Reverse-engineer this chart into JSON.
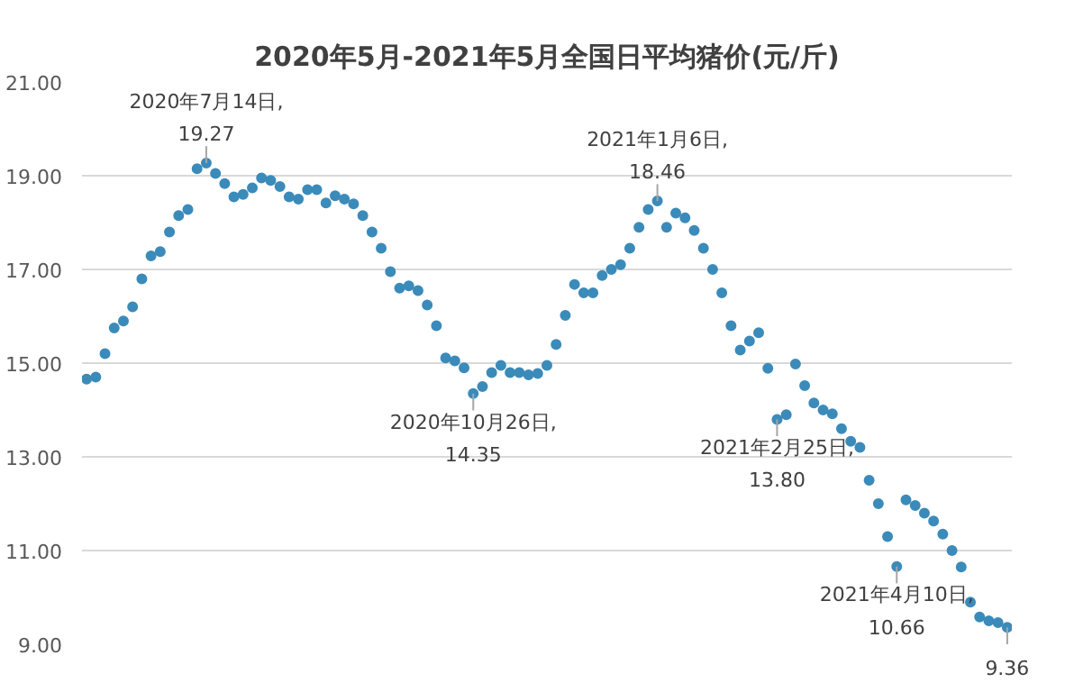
{
  "chart_data": {
    "type": "scatter",
    "title": "2020年5月-2021年5月全国日平均猪价(元/斤)",
    "categories": [
      null,
      null,
      null,
      null,
      null,
      null,
      null,
      null,
      null,
      null,
      null,
      null,
      null,
      null,
      null,
      null,
      null,
      null,
      null,
      null,
      null,
      null,
      null,
      null,
      null,
      null,
      null,
      null,
      null,
      null,
      null,
      null,
      null,
      null,
      null,
      null,
      null,
      null,
      null,
      null,
      null,
      null,
      null,
      null,
      null,
      null,
      null,
      null,
      null,
      null,
      null,
      null,
      null,
      null,
      null,
      null,
      null,
      null,
      null,
      null,
      null,
      null,
      null,
      null,
      null,
      null,
      null,
      null,
      null,
      null,
      null,
      null,
      null,
      null,
      null,
      null,
      null,
      null,
      null,
      null,
      null,
      null,
      null,
      null,
      null,
      null,
      null,
      null,
      null,
      null,
      null,
      null,
      null,
      null,
      null,
      null,
      null,
      null,
      null,
      null,
      null
    ],
    "series": [
      {
        "color": "#3b8bba",
        "values": [
          14.66,
          14.7,
          15.2,
          15.75,
          15.9,
          16.2,
          16.8,
          17.29,
          17.38,
          17.8,
          18.15,
          18.28,
          19.15,
          19.27,
          19.05,
          18.83,
          18.55,
          18.6,
          18.74,
          18.95,
          18.9,
          18.77,
          18.55,
          18.5,
          18.7,
          18.7,
          18.42,
          18.57,
          18.5,
          18.4,
          18.15,
          17.8,
          17.45,
          16.95,
          16.6,
          16.65,
          16.55,
          16.24,
          15.8,
          15.11,
          15.05,
          14.9,
          14.35,
          14.5,
          14.8,
          14.95,
          14.8,
          14.8,
          14.75,
          14.78,
          14.95,
          15.4,
          16.02,
          16.68,
          16.5,
          16.5,
          16.87,
          17.0,
          17.1,
          17.45,
          17.9,
          18.28,
          18.46,
          17.9,
          18.2,
          18.1,
          17.83,
          17.45,
          17.0,
          16.5,
          15.8,
          15.28,
          15.47,
          15.65,
          14.89,
          13.8,
          13.9,
          14.98,
          14.52,
          14.15,
          14.0,
          13.92,
          13.6,
          13.33,
          13.2,
          12.5,
          12.0,
          11.3,
          10.66,
          12.08,
          11.96,
          11.8,
          11.63,
          11.35,
          11.0,
          10.65,
          9.9,
          9.58,
          9.5,
          9.46,
          9.36
        ]
      }
    ],
    "ylim": [
      9,
      21
    ],
    "yticks": [
      {
        "value": 9,
        "label": "9.00"
      },
      {
        "value": 11,
        "label": "11.00"
      },
      {
        "value": 13,
        "label": "13.00"
      },
      {
        "value": 15,
        "label": "15.00"
      },
      {
        "value": 17,
        "label": "17.00"
      },
      {
        "value": 19,
        "label": "19.00"
      },
      {
        "value": 21,
        "label": "21.00"
      }
    ],
    "tick_labels": "y",
    "grid": "y",
    "marker": "circle",
    "annotations": [
      {
        "text": "2020年7月14日,\n19.27",
        "y": 19.27
      },
      {
        "text": "2020年10月26日,\n14.35",
        "y": 14.35
      },
      {
        "text": "2021年1月6日,\n18.46",
        "y": 18.46
      },
      {
        "text": "2021年2月25日,\n13.80",
        "y": 13.8
      },
      {
        "text": "2021年4月10日,\n10.66",
        "y": 10.66
      },
      {
        "text": "9.36",
        "y": 9.36
      }
    ]
  }
}
